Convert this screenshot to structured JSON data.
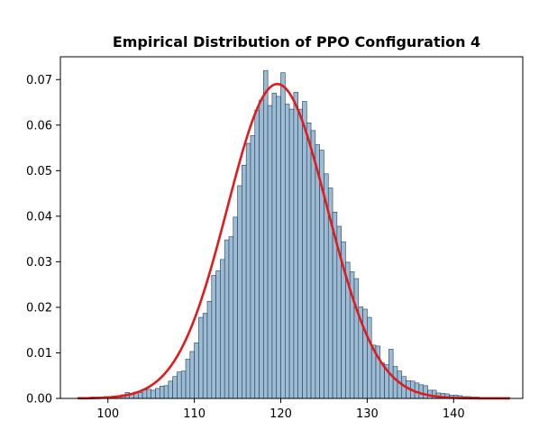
{
  "chart_data": {
    "type": "bar",
    "title": "Empirical Distribution of PPO Configuration 4",
    "xlabel": "",
    "ylabel": "",
    "xlim": [
      94.5,
      148
    ],
    "ylim": [
      0,
      0.075
    ],
    "x_ticks": [
      100,
      110,
      120,
      130,
      140
    ],
    "x_tick_labels": [
      "100",
      "110",
      "120",
      "130",
      "140"
    ],
    "y_ticks": [
      0,
      0.01,
      0.02,
      0.03,
      0.04,
      0.05,
      0.06,
      0.07
    ],
    "y_tick_labels": [
      "0.00",
      "0.01",
      "0.02",
      "0.03",
      "0.04",
      "0.05",
      "0.06",
      "0.07"
    ],
    "grid": false,
    "legend": "none",
    "bar_width": 0.5,
    "histogram": {
      "bin_left": [
        96.5,
        97,
        97.5,
        98,
        98.5,
        99,
        99.5,
        100,
        100.5,
        101,
        101.5,
        102,
        102.5,
        103,
        103.5,
        104,
        104.5,
        105,
        105.5,
        106,
        106.5,
        107,
        107.5,
        108,
        108.5,
        109,
        109.5,
        110,
        110.5,
        111,
        111.5,
        112,
        112.5,
        113,
        113.5,
        114,
        114.5,
        115,
        115.5,
        116,
        116.5,
        117,
        117.5,
        118,
        118.5,
        119,
        119.5,
        120,
        120.5,
        121,
        121.5,
        122,
        122.5,
        123,
        123.5,
        124,
        124.5,
        125,
        125.5,
        126,
        126.5,
        127,
        127.5,
        128,
        128.5,
        129,
        129.5,
        130,
        130.5,
        131,
        131.5,
        132,
        132.5,
        133,
        133.5,
        134,
        134.5,
        135,
        135.5,
        136,
        136.5,
        137,
        137.5,
        138,
        138.5,
        139,
        139.5,
        140,
        140.5,
        141,
        141.5,
        142,
        142.5,
        143,
        143.5,
        144,
        144.5,
        145,
        145.5,
        146
      ],
      "density": [
        0.0002,
        0.0002,
        0.0002,
        0.0003,
        0.0003,
        0.0003,
        0.0004,
        0.0004,
        0.0005,
        0.0006,
        0.0008,
        0.0013,
        0.0011,
        0.0014,
        0.0013,
        0.0019,
        0.002,
        0.0018,
        0.0022,
        0.0027,
        0.0028,
        0.0038,
        0.0048,
        0.0058,
        0.006,
        0.0086,
        0.0103,
        0.0122,
        0.0178,
        0.0187,
        0.0213,
        0.027,
        0.028,
        0.0305,
        0.0348,
        0.0355,
        0.0398,
        0.0467,
        0.0512,
        0.056,
        0.0577,
        0.0633,
        0.0655,
        0.072,
        0.0643,
        0.067,
        0.0663,
        0.0715,
        0.0646,
        0.0635,
        0.0672,
        0.0635,
        0.0652,
        0.0605,
        0.0588,
        0.0557,
        0.0545,
        0.0493,
        0.0462,
        0.0409,
        0.0378,
        0.0344,
        0.0299,
        0.0278,
        0.0263,
        0.0201,
        0.0196,
        0.0178,
        0.0117,
        0.0115,
        0.0078,
        0.0074,
        0.0108,
        0.007,
        0.006,
        0.0048,
        0.0039,
        0.0038,
        0.0034,
        0.003,
        0.0028,
        0.0018,
        0.0018,
        0.0012,
        0.0011,
        0.001,
        0.0007,
        0.0007,
        0.0006,
        0.0004,
        0.0004,
        0.0003,
        0.0003,
        0.0002,
        0.0002,
        0.0002,
        0.0002,
        0.0002,
        0.0002,
        0.0002
      ]
    },
    "fit_curve": {
      "type": "normal",
      "mean": 119.6,
      "std": 5.78,
      "x_range": [
        96.5,
        146.5
      ],
      "color": "#e31a1c"
    },
    "colors": {
      "bar_fill": "#9dbcd4",
      "bar_edge": "#1f3f5a",
      "curve": "#e31a1c"
    }
  }
}
